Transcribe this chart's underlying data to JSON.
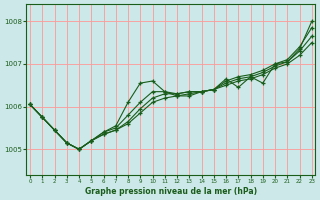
{
  "xlabel": "Graphe pression niveau de la mer (hPa)",
  "bg_color": "#cce8e8",
  "grid_color": "#ff9999",
  "line_color": "#1a5c1a",
  "ylim": [
    1004.4,
    1008.4
  ],
  "xlim": [
    -0.3,
    23.3
  ],
  "yticks": [
    1005,
    1006,
    1007,
    1008
  ],
  "xticks": [
    0,
    1,
    2,
    3,
    4,
    5,
    6,
    7,
    8,
    9,
    10,
    11,
    12,
    13,
    14,
    15,
    16,
    17,
    18,
    19,
    20,
    21,
    22,
    23
  ],
  "series": [
    [
      1006.05,
      1005.75,
      1005.45,
      1005.15,
      1005.0,
      1005.2,
      1005.35,
      1005.45,
      1005.6,
      1005.85,
      1006.1,
      1006.2,
      1006.25,
      1006.3,
      1006.35,
      1006.4,
      1006.5,
      1006.6,
      1006.65,
      1006.75,
      1006.9,
      1007.0,
      1007.2,
      1007.5
    ],
    [
      1006.05,
      1005.75,
      1005.45,
      1005.15,
      1005.0,
      1005.2,
      1005.35,
      1005.45,
      1005.65,
      1005.95,
      1006.2,
      1006.3,
      1006.3,
      1006.35,
      1006.35,
      1006.4,
      1006.55,
      1006.65,
      1006.7,
      1006.8,
      1006.95,
      1007.05,
      1007.3,
      1007.65
    ],
    [
      1006.05,
      1005.75,
      1005.45,
      1005.15,
      1005.0,
      1005.2,
      1005.4,
      1005.5,
      1005.8,
      1006.1,
      1006.35,
      1006.35,
      1006.3,
      1006.35,
      1006.35,
      1006.4,
      1006.6,
      1006.7,
      1006.75,
      1006.85,
      1007.0,
      1007.1,
      1007.4,
      1007.85
    ],
    [
      1006.05,
      1005.75,
      1005.45,
      1005.15,
      1005.0,
      1005.2,
      1005.4,
      1005.55,
      1006.1,
      1006.55,
      1006.6,
      1006.35,
      1006.25,
      1006.25,
      1006.35,
      1006.4,
      1006.65,
      1006.45,
      1006.7,
      1006.55,
      1007.0,
      1007.05,
      1007.35,
      1008.0
    ]
  ]
}
